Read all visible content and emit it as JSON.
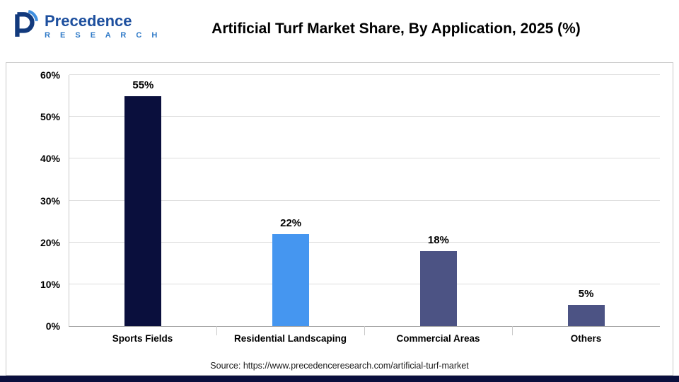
{
  "header": {
    "logo_line1": "Precedence",
    "logo_line2": "R E S E A R C H",
    "title": "Artificial Turf Market Share, By Application, 2025 (%)"
  },
  "chart_data": {
    "type": "bar",
    "title": "Artificial Turf Market Share, By Application, 2025 (%)",
    "categories": [
      "Sports Fields",
      "Residential Landscaping",
      "Commercial Areas",
      "Others"
    ],
    "values": [
      55,
      22,
      18,
      5
    ],
    "value_labels": [
      "55%",
      "22%",
      "18%",
      "5%"
    ],
    "bar_colors": [
      "#0a0f3d",
      "#4596f0",
      "#4c5384",
      "#4c5384"
    ],
    "xlabel": "",
    "ylabel": "",
    "ylim": [
      0,
      60
    ],
    "yticks": [
      0,
      10,
      20,
      30,
      40,
      50,
      60
    ],
    "ytick_labels": [
      "0%",
      "10%",
      "20%",
      "30%",
      "40%",
      "50%",
      "60%"
    ],
    "grid": true,
    "legend": false
  },
  "footer": {
    "source": "Source: https://www.precedenceresearch.com/artificial-turf-market"
  },
  "colors": {
    "accent_navy": "#0a0f3d",
    "logo_blue": "#1d4f9e",
    "logo_light_blue": "#2e79c7",
    "panel_border": "#c8c8c8"
  }
}
